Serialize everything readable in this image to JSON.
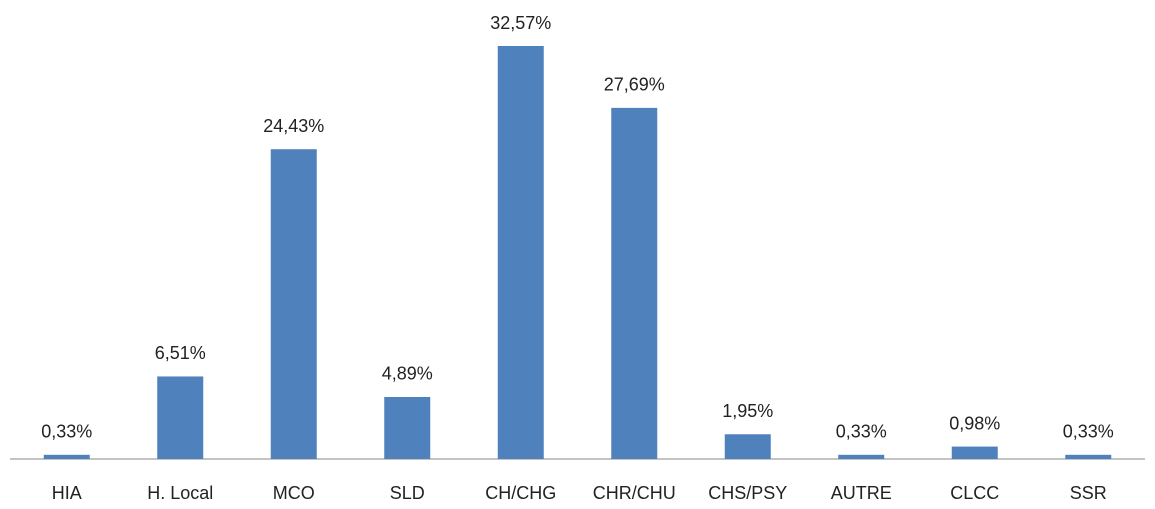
{
  "chart_data": {
    "type": "bar",
    "categories": [
      "HIA",
      "H. Local",
      "MCO",
      "SLD",
      "CH/CHG",
      "CHR/CHU",
      "CHS/PSY",
      "AUTRE",
      "CLCC",
      "SSR"
    ],
    "values": [
      0.33,
      6.51,
      24.43,
      4.89,
      32.57,
      27.69,
      1.95,
      0.33,
      0.98,
      0.33
    ],
    "value_labels": [
      "0,33%",
      "6,51%",
      "24,43%",
      "4,89%",
      "32,57%",
      "27,69%",
      "1,95%",
      "0,33%",
      "0,98%",
      "0,33%"
    ],
    "color": "#4f81bd"
  }
}
